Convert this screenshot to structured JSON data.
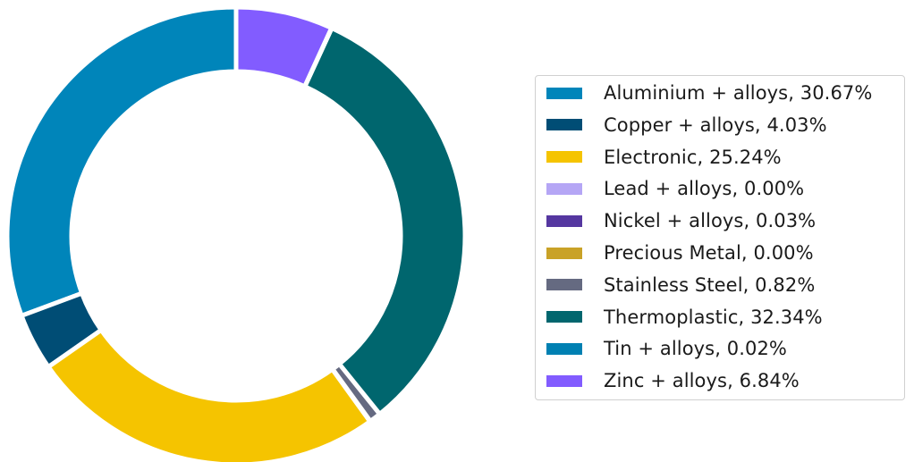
{
  "chart_data": {
    "type": "pie",
    "donut": true,
    "legend_position": "right",
    "start_angle_deg": 90,
    "direction": "counterclockwise",
    "slices": [
      {
        "label": "Aluminium + alloys, 30.67%",
        "name": "Aluminium + alloys",
        "value": 30.67,
        "color": "#0085BA"
      },
      {
        "label": "Copper + alloys, 4.03%",
        "name": "Copper + alloys",
        "value": 4.03,
        "color": "#004D75"
      },
      {
        "label": "Electronic, 25.24%",
        "name": "Electronic",
        "value": 25.24,
        "color": "#F5C400"
      },
      {
        "label": "Lead + alloys, 0.00%",
        "name": "Lead + alloys",
        "value": 0.0,
        "color": "#B5A6F5"
      },
      {
        "label": "Nickel + alloys, 0.03%",
        "name": "Nickel + alloys",
        "value": 0.03,
        "color": "#5537A0"
      },
      {
        "label": "Precious Metal, 0.00%",
        "name": "Precious Metal",
        "value": 0.0,
        "color": "#C9A227"
      },
      {
        "label": "Stainless Steel, 0.82%",
        "name": "Stainless Steel",
        "value": 0.82,
        "color": "#656A81"
      },
      {
        "label": "Thermoplastic, 32.34%",
        "name": "Thermoplastic",
        "value": 32.34,
        "color": "#00666E"
      },
      {
        "label": "Tin + alloys, 0.02%",
        "name": "Tin + alloys",
        "value": 0.02,
        "color": "#0080B2"
      },
      {
        "label": "Zinc + alloys, 6.84%",
        "name": "Zinc + alloys",
        "value": 6.84,
        "color": "#825CFF"
      }
    ]
  }
}
